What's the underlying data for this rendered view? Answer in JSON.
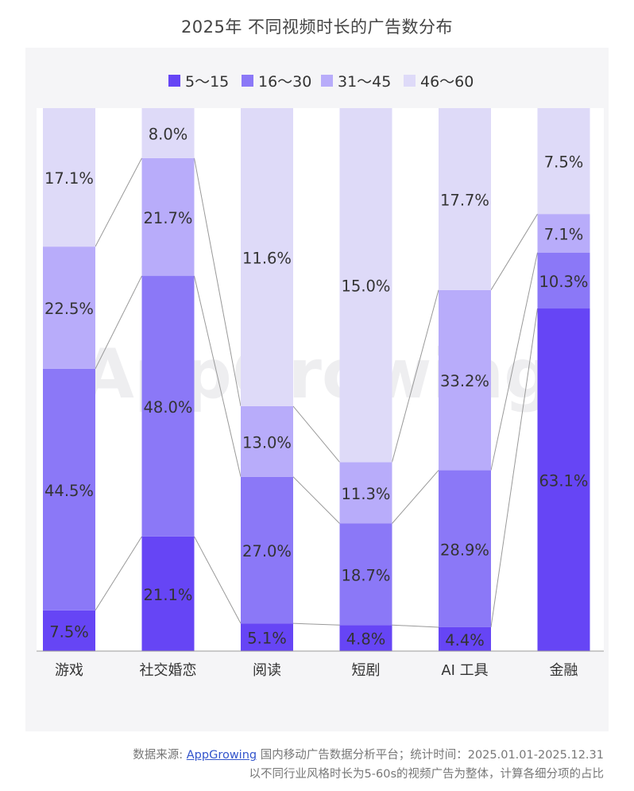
{
  "title": "2025年 不同视频时长的广告数分布",
  "watermark": "AppGrowing",
  "source": {
    "prefix": "数据来源: ",
    "link": "AppGrowing",
    "suffix": " 国内移动广告数据分析平台；统计时间：2025.01.01-2025.12.31",
    "note": "以不同行业风格时长为5-60s的视频广告为整体，计算各细分项的占比"
  },
  "chart_data": {
    "type": "bar",
    "stacked": true,
    "percent": true,
    "ylim": [
      0,
      100
    ],
    "legend_position": "top",
    "categories": [
      "游戏",
      "社交婚恋",
      "阅读",
      "短剧",
      "AI 工具",
      "金融"
    ],
    "series": [
      {
        "name": "5～15",
        "color": "#6645f5",
        "values": [
          7.5,
          21.1,
          5.1,
          4.8,
          4.4,
          63.1
        ]
      },
      {
        "name": "16～30",
        "color": "#8b78f7",
        "values": [
          44.5,
          48.0,
          27.0,
          18.7,
          28.9,
          10.3
        ]
      },
      {
        "name": "31～45",
        "color": "#b8acfa",
        "values": [
          22.5,
          21.7,
          13.0,
          11.3,
          33.2,
          7.1
        ]
      },
      {
        "name": "46～60",
        "color": "#dedaf8",
        "values": [
          17.1,
          8.0,
          11.6,
          15.0,
          17.7,
          7.5
        ]
      }
    ],
    "labels": [
      [
        "7.5%",
        "21.1%",
        "5.1%",
        "4.8%",
        "4.4%",
        "63.1%"
      ],
      [
        "44.5%",
        "48.0%",
        "27.0%",
        "18.7%",
        "28.9%",
        "10.3%"
      ],
      [
        "22.5%",
        "21.7%",
        "13.0%",
        "11.3%",
        "33.2%",
        "7.1%"
      ],
      [
        "17.1%",
        "8.0%",
        "11.6%",
        "15.0%",
        "17.7%",
        "7.5%"
      ]
    ]
  }
}
